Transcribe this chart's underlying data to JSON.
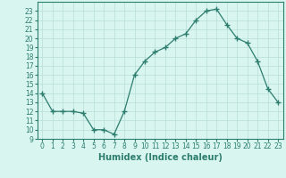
{
  "x": [
    0,
    1,
    2,
    3,
    4,
    5,
    6,
    7,
    8,
    9,
    10,
    11,
    12,
    13,
    14,
    15,
    16,
    17,
    18,
    19,
    20,
    21,
    22,
    23
  ],
  "y": [
    14,
    12,
    12,
    12,
    11.8,
    10,
    10,
    9.5,
    12,
    16,
    17.5,
    18.5,
    19,
    20,
    20.5,
    22,
    23,
    23.2,
    21.5,
    20,
    19.5,
    17.5,
    14.5,
    13
  ],
  "line_color": "#2d7d6e",
  "marker": "+",
  "marker_size": 4,
  "marker_linewidth": 1.0,
  "bg_color": "#d8f5f0",
  "grid_color": "#b8ddd8",
  "xlabel": "Humidex (Indice chaleur)",
  "xlim": [
    -0.5,
    23.5
  ],
  "ylim": [
    9,
    24
  ],
  "yticks": [
    9,
    10,
    11,
    12,
    13,
    14,
    15,
    16,
    17,
    18,
    19,
    20,
    21,
    22,
    23
  ],
  "xticks": [
    0,
    1,
    2,
    3,
    4,
    5,
    6,
    7,
    8,
    9,
    10,
    11,
    12,
    13,
    14,
    15,
    16,
    17,
    18,
    19,
    20,
    21,
    22,
    23
  ],
  "label_fontsize": 7,
  "tick_fontsize": 5.5
}
